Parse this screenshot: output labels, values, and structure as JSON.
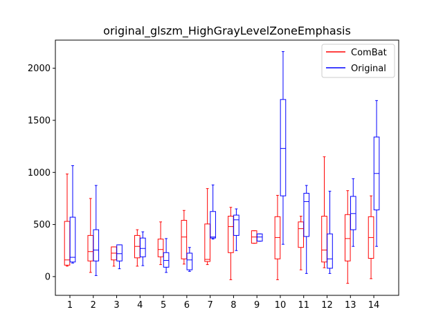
{
  "chart_data": {
    "type": "boxplot",
    "title": "original_glszm_HighGrayLevelZoneEmphasis",
    "xlabel": "",
    "ylabel": "",
    "categories": [
      "1",
      "2",
      "3",
      "4",
      "5",
      "6",
      "7",
      "8",
      "9",
      "10",
      "11",
      "12",
      "13",
      "14"
    ],
    "ylim": [
      -180,
      2270
    ],
    "yticks": [
      0,
      500,
      1000,
      1500,
      2000
    ],
    "grid": false,
    "legend": {
      "placement": "upper-right"
    },
    "series": [
      {
        "name": "ComBat",
        "color": "#ff0000",
        "boxes": [
          {
            "whislo": 100,
            "q1": 110,
            "med": 160,
            "q3": 530,
            "whishi": 985
          },
          {
            "whislo": 40,
            "q1": 150,
            "med": 240,
            "q3": 395,
            "whishi": 750
          },
          {
            "whislo": 100,
            "q1": 160,
            "med": 225,
            "q3": 285,
            "whishi": 285
          },
          {
            "whislo": 100,
            "q1": 180,
            "med": 290,
            "q3": 395,
            "whishi": 450
          },
          {
            "whislo": 115,
            "q1": 190,
            "med": 260,
            "q3": 360,
            "whishi": 525
          },
          {
            "whislo": 120,
            "q1": 170,
            "med": 380,
            "q3": 540,
            "whishi": 635
          },
          {
            "whislo": 115,
            "q1": 145,
            "med": 165,
            "q3": 505,
            "whishi": 845
          },
          {
            "whislo": -30,
            "q1": 230,
            "med": 480,
            "q3": 580,
            "whishi": 665
          },
          {
            "whislo": 320,
            "q1": 320,
            "med": 380,
            "q3": 440,
            "whishi": 440
          },
          {
            "whislo": -30,
            "q1": 170,
            "med": 375,
            "q3": 575,
            "whishi": 780
          },
          {
            "whislo": 65,
            "q1": 280,
            "med": 460,
            "q3": 525,
            "whishi": 580
          },
          {
            "whislo": 85,
            "q1": 140,
            "med": 255,
            "q3": 580,
            "whishi": 1150
          },
          {
            "whislo": -65,
            "q1": 150,
            "med": 365,
            "q3": 595,
            "whishi": 825
          },
          {
            "whislo": -20,
            "q1": 175,
            "med": 375,
            "q3": 575,
            "whishi": 775
          }
        ]
      },
      {
        "name": "Original",
        "color": "#0000ff",
        "boxes": [
          {
            "whislo": 130,
            "q1": 140,
            "med": 185,
            "q3": 570,
            "whishi": 1065
          },
          {
            "whislo": 10,
            "q1": 150,
            "med": 255,
            "q3": 450,
            "whishi": 875
          },
          {
            "whislo": 75,
            "q1": 150,
            "med": 220,
            "q3": 305,
            "whishi": 305
          },
          {
            "whislo": 105,
            "q1": 190,
            "med": 270,
            "q3": 370,
            "whishi": 430
          },
          {
            "whislo": 40,
            "q1": 90,
            "med": 155,
            "q3": 230,
            "whishi": 365
          },
          {
            "whislo": 50,
            "q1": 65,
            "med": 160,
            "q3": 225,
            "whishi": 280
          },
          {
            "whislo": 360,
            "q1": 370,
            "med": 380,
            "q3": 625,
            "whishi": 880
          },
          {
            "whislo": 250,
            "q1": 395,
            "med": 545,
            "q3": 590,
            "whishi": 650
          },
          {
            "whislo": 340,
            "q1": 340,
            "med": 380,
            "q3": 410,
            "whishi": 410
          },
          {
            "whislo": 310,
            "q1": 775,
            "med": 1230,
            "q3": 1700,
            "whishi": 2160
          },
          {
            "whislo": 30,
            "q1": 385,
            "med": 720,
            "q3": 800,
            "whishi": 875
          },
          {
            "whislo": 30,
            "q1": 80,
            "med": 170,
            "q3": 410,
            "whishi": 820
          },
          {
            "whislo": 290,
            "q1": 450,
            "med": 605,
            "q3": 770,
            "whishi": 940
          },
          {
            "whislo": 290,
            "q1": 640,
            "med": 990,
            "q3": 1340,
            "whishi": 1690
          }
        ]
      }
    ]
  }
}
